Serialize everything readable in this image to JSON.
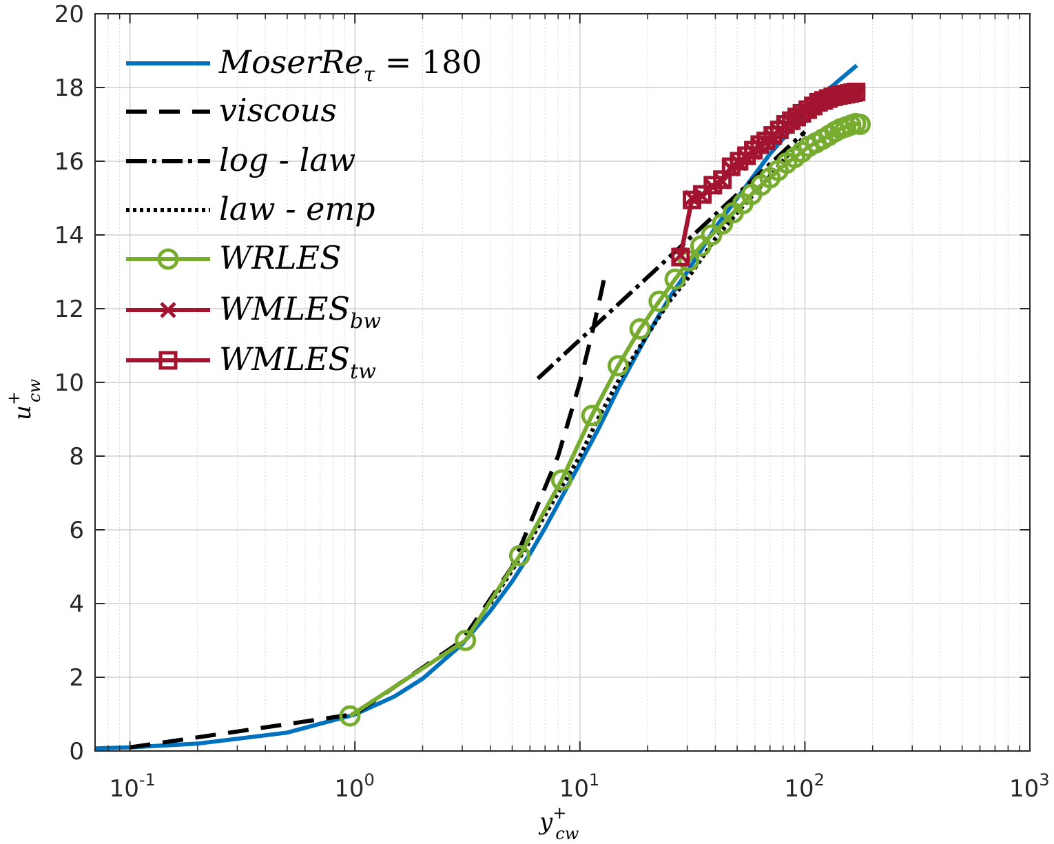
{
  "chart_data": {
    "type": "line",
    "xscale": "log",
    "xlim": [
      0.07,
      1000
    ],
    "ylim": [
      0,
      20
    ],
    "grid": true,
    "legend_position": "top-left",
    "xlabel": {
      "base": "y",
      "sup": "+",
      "sub": "cw"
    },
    "ylabel": {
      "base": "u",
      "sup": "+",
      "sub": "cw"
    },
    "x_ticks": [
      {
        "value": 0.1,
        "base": "10",
        "exp": "-1"
      },
      {
        "value": 1,
        "base": "10",
        "exp": "0"
      },
      {
        "value": 10,
        "base": "10",
        "exp": "1"
      },
      {
        "value": 100,
        "base": "10",
        "exp": "2"
      },
      {
        "value": 1000,
        "base": "10",
        "exp": "3"
      }
    ],
    "y_ticks": [
      0,
      2,
      4,
      6,
      8,
      10,
      12,
      14,
      16,
      18,
      20
    ],
    "series": [
      {
        "name": "moser",
        "legend": {
          "base": "MoserRe",
          "sub": "τ",
          "tail": " = 180"
        },
        "color": "#0072BD",
        "style": "solid",
        "marker": "none",
        "x": [
          0.07,
          0.1,
          0.2,
          0.5,
          1,
          1.5,
          2,
          3,
          4,
          5,
          6,
          7,
          8,
          10,
          12,
          15,
          20,
          25,
          30,
          40,
          50,
          70,
          100,
          130,
          170
        ],
        "y": [
          0.07,
          0.1,
          0.2,
          0.5,
          0.99,
          1.48,
          1.96,
          2.9,
          3.8,
          4.6,
          5.35,
          6.05,
          6.7,
          7.8,
          8.7,
          9.9,
          11.3,
          12.3,
          13.0,
          14.2,
          15.0,
          16.2,
          17.3,
          18.0,
          18.6
        ]
      },
      {
        "name": "viscous",
        "legend": {
          "base": "viscous"
        },
        "color": "#000000",
        "style": "dashed",
        "marker": "none",
        "x": [
          0.1,
          1,
          3,
          5,
          8,
          10,
          11.5,
          12.5,
          13
        ],
        "y": [
          0.1,
          1,
          3,
          5,
          8,
          10,
          11.5,
          12.5,
          13
        ]
      },
      {
        "name": "loglaw",
        "legend": {
          "base": "log - law"
        },
        "color": "#000000",
        "style": "dashdot",
        "marker": "none",
        "x": [
          6.5,
          100
        ],
        "y": [
          10.1,
          16.8
        ]
      },
      {
        "name": "lawemp",
        "legend": {
          "base": "law - emp"
        },
        "color": "#000000",
        "style": "dotted",
        "marker": "none",
        "x": [
          4,
          5,
          6,
          8,
          10,
          12,
          15,
          20,
          25,
          30,
          40,
          50,
          70,
          100
        ],
        "y": [
          4.0,
          4.9,
          5.7,
          7.0,
          8.0,
          9.0,
          10.1,
          11.3,
          12.2,
          12.8,
          13.9,
          14.6,
          15.6,
          16.7
        ]
      },
      {
        "name": "wrles",
        "legend": {
          "base": "WRLES"
        },
        "color": "#77AC30",
        "style": "solid",
        "marker": "circle",
        "x": [
          0.95,
          3.1,
          5.4,
          8.3,
          11.3,
          14.8,
          18.5,
          22.5,
          26.5,
          30.5,
          34.5,
          38.5,
          43,
          48,
          53,
          58,
          64,
          70,
          76,
          83,
          90,
          97,
          104,
          112,
          120,
          128,
          136,
          144,
          152,
          160,
          168,
          176
        ],
        "y": [
          0.95,
          3.0,
          5.3,
          7.35,
          9.1,
          10.45,
          11.45,
          12.2,
          12.8,
          13.3,
          13.7,
          14.0,
          14.3,
          14.6,
          14.85,
          15.1,
          15.35,
          15.55,
          15.75,
          15.95,
          16.1,
          16.25,
          16.4,
          16.5,
          16.6,
          16.7,
          16.8,
          16.88,
          16.93,
          16.98,
          17.02,
          17.0
        ]
      },
      {
        "name": "wmles_bw",
        "legend": {
          "base": "WMLES",
          "sub": "bw"
        },
        "color": "#A2142F",
        "style": "solid",
        "marker": "x",
        "x": [
          28,
          31.5,
          35,
          39,
          43,
          47,
          51,
          55,
          59,
          63,
          67,
          72,
          77,
          82,
          87,
          92,
          97,
          103,
          109,
          115,
          121,
          127,
          133,
          139,
          145,
          151,
          157,
          163,
          169
        ],
        "y": [
          13.45,
          15.0,
          15.05,
          15.3,
          15.45,
          15.8,
          15.95,
          16.1,
          16.25,
          16.4,
          16.5,
          16.65,
          16.8,
          16.95,
          17.05,
          17.15,
          17.25,
          17.35,
          17.45,
          17.55,
          17.6,
          17.65,
          17.7,
          17.72,
          17.74,
          17.76,
          17.78,
          17.8,
          17.82
        ]
      },
      {
        "name": "wmles_tw",
        "legend": {
          "base": "WMLES",
          "sub": "tw"
        },
        "color": "#A2142F",
        "style": "solid",
        "marker": "square",
        "x": [
          28,
          31.5,
          35,
          39,
          43,
          47,
          51,
          55,
          59,
          63,
          67,
          72,
          77,
          82,
          87,
          92,
          97,
          103,
          109,
          115,
          121,
          127,
          133,
          139,
          145,
          151,
          157,
          163,
          169
        ],
        "y": [
          13.4,
          14.95,
          15.1,
          15.35,
          15.5,
          15.85,
          16.0,
          16.15,
          16.3,
          16.45,
          16.55,
          16.7,
          16.85,
          17.0,
          17.1,
          17.2,
          17.3,
          17.4,
          17.5,
          17.6,
          17.65,
          17.7,
          17.75,
          17.78,
          17.8,
          17.82,
          17.84,
          17.86,
          17.88
        ]
      }
    ]
  }
}
